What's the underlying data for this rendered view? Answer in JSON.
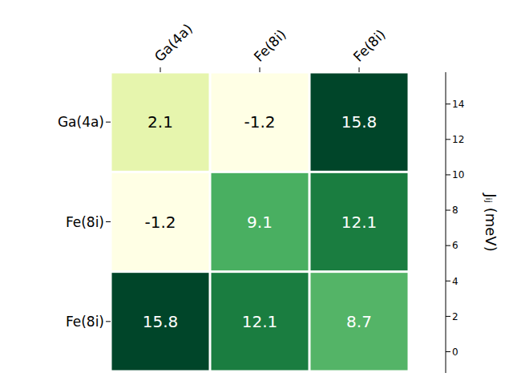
{
  "chart_data": {
    "type": "heatmap",
    "x_labels": [
      "Ga(4a)",
      "Fe(8i)",
      "Fe(8i)"
    ],
    "y_labels": [
      "Ga(4a)",
      "Fe(8i)",
      "Fe(8i)"
    ],
    "cells": [
      [
        2.1,
        -1.2,
        15.8
      ],
      [
        -1.2,
        9.1,
        12.1
      ],
      [
        15.8,
        12.1,
        8.7
      ]
    ],
    "data_labels": true,
    "color": "YlGn",
    "colorbar": {
      "label": "Jᵢⱼ (meV)",
      "range": [
        -1.2,
        15.8
      ],
      "ticks": [
        0,
        2,
        4,
        6,
        8,
        10,
        12,
        14
      ]
    }
  }
}
